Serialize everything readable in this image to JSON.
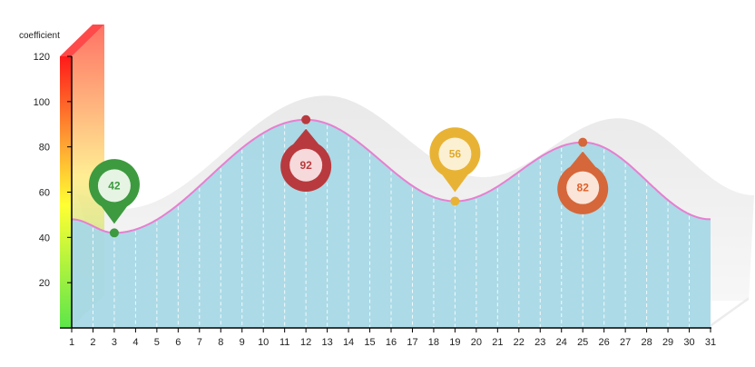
{
  "chart_data": {
    "type": "area",
    "ylabel": "coefficient",
    "ylim": [
      0,
      120
    ],
    "yticks": [
      "20",
      "40",
      "60",
      "80",
      "100",
      "120"
    ],
    "x": [
      1,
      2,
      3,
      4,
      5,
      6,
      7,
      8,
      9,
      10,
      11,
      12,
      13,
      14,
      15,
      16,
      17,
      18,
      19,
      20,
      21,
      22,
      23,
      24,
      25,
      26,
      27,
      28,
      29,
      30,
      31
    ],
    "xticks": [
      "1",
      "2",
      "3",
      "4",
      "5",
      "6",
      "7",
      "8",
      "9",
      "10",
      "11",
      "12",
      "13",
      "14",
      "15",
      "16",
      "17",
      "18",
      "19",
      "20",
      "21",
      "22",
      "23",
      "24",
      "25",
      "26",
      "27",
      "28",
      "29",
      "30",
      "31"
    ],
    "key_points": [
      {
        "x": 1,
        "y": 48
      },
      {
        "x": 3,
        "y": 42
      },
      {
        "x": 12,
        "y": 92
      },
      {
        "x": 19,
        "y": 56
      },
      {
        "x": 25,
        "y": 82
      },
      {
        "x": 31,
        "y": 48
      }
    ],
    "markers": [
      {
        "x": 3,
        "y": 42,
        "label": "42",
        "color": "#3d9a3f",
        "light": "#e6f4e4",
        "text_color": "#3d9a3f",
        "position": "above"
      },
      {
        "x": 12,
        "y": 92,
        "label": "92",
        "color": "#b83a3e",
        "light": "#f6d9da",
        "text_color": "#b83a3e",
        "position": "below"
      },
      {
        "x": 19,
        "y": 56,
        "label": "56",
        "color": "#e8b335",
        "light": "#fbf0d2",
        "text_color": "#e0a92a",
        "position": "above"
      },
      {
        "x": 25,
        "y": 82,
        "label": "82",
        "color": "#d5673a",
        "light": "#fbe5d8",
        "text_color": "#e0602a",
        "position": "below"
      }
    ],
    "colors": {
      "area_fill": "#a8d8e6",
      "line": "#e77fd0",
      "shadow": "#e4e4e4",
      "gradient_bar": [
        "#5ee64a",
        "#ffff33",
        "#ff9933",
        "#ff1a1a"
      ]
    },
    "grid": false
  }
}
